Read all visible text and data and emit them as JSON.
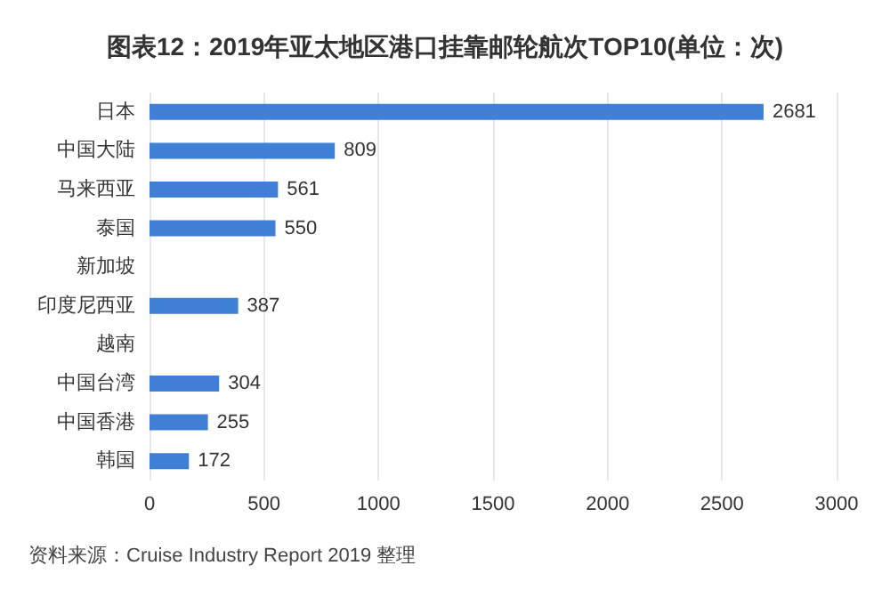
{
  "chart_data": {
    "type": "bar",
    "orientation": "horizontal",
    "title": "图表12：2019年亚太地区港口挂靠邮轮航次TOP10(单位：次)",
    "categories": [
      "日本",
      "中国大陆",
      "马来西亚",
      "泰国",
      "新加坡",
      "印度尼西亚",
      "越南",
      "中国台湾",
      "中国香港",
      "韩国"
    ],
    "values": [
      2681,
      809,
      561,
      550,
      null,
      387,
      null,
      304,
      255,
      172
    ],
    "color": "#3f7fd6",
    "xlim": [
      0,
      3000
    ],
    "xticks": [
      0,
      500,
      1000,
      1500,
      2000,
      2500,
      3000
    ],
    "grid": "x",
    "data_labels": true,
    "annotations": [
      "资料来源：Cruise Industry Report 2019 整理"
    ]
  }
}
